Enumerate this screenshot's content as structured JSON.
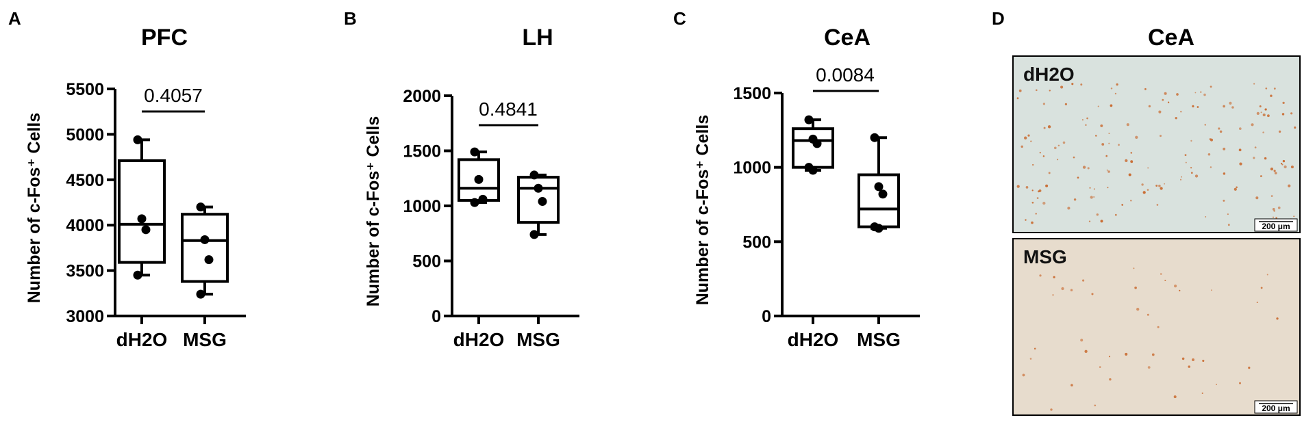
{
  "colors": {
    "ink": "#000000",
    "control_bg": "#d9e2de",
    "msg_bg": "#e7dccd",
    "cell_stain": "#c8662a"
  },
  "chart_data": [
    {
      "type": "box",
      "panel": "A",
      "title": "PFC",
      "ylabel": "Number of c-Fos⁺ Cells",
      "ylim": [
        3000,
        5500
      ],
      "yticks": [
        3000,
        3500,
        4000,
        4500,
        5000,
        5500
      ],
      "categories": [
        "dH2O",
        "MSG"
      ],
      "boxes": [
        {
          "min": 3450,
          "q1": 3590,
          "median": 4010,
          "q3": 4710,
          "max": 4940,
          "points": [
            4940,
            4070,
            3950,
            3450
          ]
        },
        {
          "min": 3240,
          "q1": 3380,
          "median": 3830,
          "q3": 4120,
          "max": 4200,
          "points": [
            4200,
            3840,
            3620,
            3240
          ]
        }
      ],
      "p_value": "0.4057"
    },
    {
      "type": "box",
      "panel": "B",
      "title": "LH",
      "ylabel": "Number of c-Fos⁺ Cells",
      "ylim": [
        0,
        2000
      ],
      "yticks": [
        0,
        500,
        1000,
        1500,
        2000
      ],
      "categories": [
        "dH2O",
        "MSG"
      ],
      "boxes": [
        {
          "min": 1030,
          "q1": 1050,
          "median": 1160,
          "q3": 1420,
          "max": 1490,
          "points": [
            1490,
            1240,
            1060,
            1030
          ]
        },
        {
          "min": 740,
          "q1": 850,
          "median": 1160,
          "q3": 1260,
          "max": 1280,
          "points": [
            1280,
            1160,
            1040,
            740
          ]
        }
      ],
      "p_value": "0.4841"
    },
    {
      "type": "box",
      "panel": "C",
      "title": "CeA",
      "ylabel": "Number of c-Fos⁺ Cells",
      "ylim": [
        0,
        1500
      ],
      "yticks": [
        0,
        500,
        1000,
        1500
      ],
      "categories": [
        "dH2O",
        "MSG"
      ],
      "boxes": [
        {
          "min": 980,
          "q1": 1000,
          "median": 1180,
          "q3": 1260,
          "max": 1320,
          "points": [
            1320,
            1190,
            1160,
            1000,
            980
          ]
        },
        {
          "min": 590,
          "q1": 600,
          "median": 720,
          "q3": 950,
          "max": 1200,
          "points": [
            1200,
            870,
            820,
            600,
            590
          ]
        }
      ],
      "p_value": "0.0084"
    }
  ],
  "panel_d": {
    "letter": "D",
    "title": "CeA",
    "images": [
      {
        "label": "dH2O",
        "scale_bar": "200 μm"
      },
      {
        "label": "MSG",
        "scale_bar": "200 μm"
      }
    ]
  }
}
